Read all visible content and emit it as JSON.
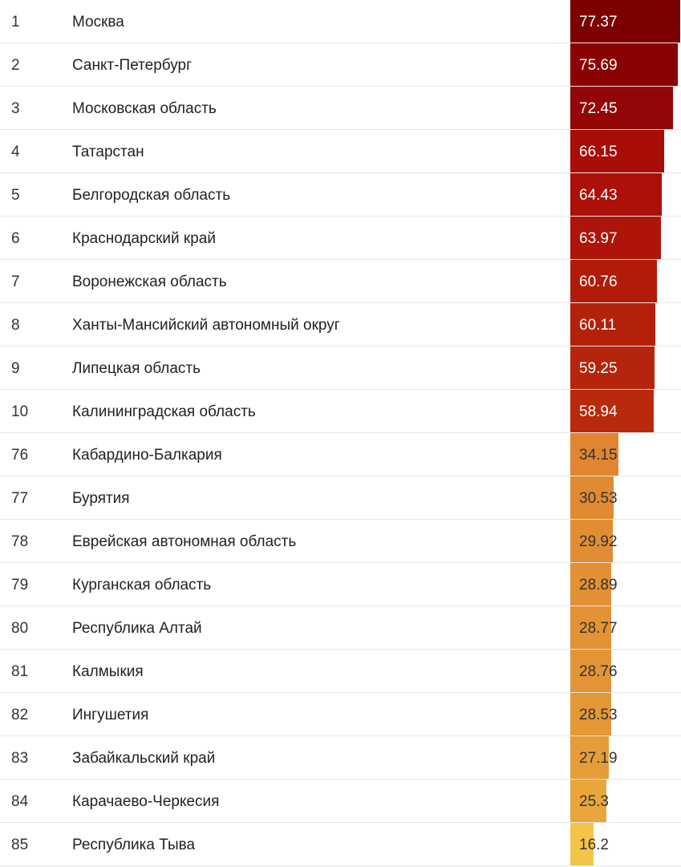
{
  "chart_data": {
    "type": "bar",
    "orientation": "horizontal",
    "columns": [
      "rank",
      "region",
      "value"
    ],
    "rows": [
      {
        "rank": "1",
        "region": "Москва",
        "value": 77.37,
        "label": "77.37",
        "color": "#7d0000"
      },
      {
        "rank": "2",
        "region": "Санкт-Петербург",
        "value": 75.69,
        "label": "75.69",
        "color": "#8a0303"
      },
      {
        "rank": "3",
        "region": "Московская область",
        "value": 72.45,
        "label": "72.45",
        "color": "#940606"
      },
      {
        "rank": "4",
        "region": "Татарстан",
        "value": 66.15,
        "label": "66.15",
        "color": "#a80d08"
      },
      {
        "rank": "5",
        "region": "Белгородская область",
        "value": 64.43,
        "label": "64.43",
        "color": "#ab1108"
      },
      {
        "rank": "6",
        "region": "Краснодарский край",
        "value": 63.97,
        "label": "63.97",
        "color": "#ae1409"
      },
      {
        "rank": "7",
        "region": "Воронежская область",
        "value": 60.76,
        "label": "60.76",
        "color": "#b11c0a"
      },
      {
        "rank": "8",
        "region": "Ханты-Мансийский автономный округ",
        "value": 60.11,
        "label": "60.11",
        "color": "#b3210b"
      },
      {
        "rank": "9",
        "region": "Липецкая область",
        "value": 59.25,
        "label": "59.25",
        "color": "#b6250b"
      },
      {
        "rank": "10",
        "region": "Калининградская область",
        "value": 58.94,
        "label": "58.94",
        "color": "#b9290c"
      },
      {
        "rank": "76",
        "region": "Кабардино-Балкария",
        "value": 34.15,
        "label": "34.15",
        "color": "#e08531"
      },
      {
        "rank": "77",
        "region": "Бурятия",
        "value": 30.53,
        "label": "30.53",
        "color": "#e08a31"
      },
      {
        "rank": "78",
        "region": "Еврейская автономная область",
        "value": 29.92,
        "label": "29.92",
        "color": "#e18d33"
      },
      {
        "rank": "79",
        "region": "Курганская область",
        "value": 28.89,
        "label": "28.89",
        "color": "#e29034"
      },
      {
        "rank": "80",
        "region": "Республика Алтай",
        "value": 28.77,
        "label": "28.77",
        "color": "#e39235"
      },
      {
        "rank": "81",
        "region": "Калмыкия",
        "value": 28.76,
        "label": "28.76",
        "color": "#e39436"
      },
      {
        "rank": "82",
        "region": "Ингушетия",
        "value": 28.53,
        "label": "28.53",
        "color": "#e49737"
      },
      {
        "rank": "83",
        "region": "Забайкальский край",
        "value": 27.19,
        "label": "27.19",
        "color": "#e69c38"
      },
      {
        "rank": "84",
        "region": "Карачаево-Черкесия",
        "value": 25.3,
        "label": "25.3",
        "color": "#e9a73b"
      },
      {
        "rank": "85",
        "region": "Республика Тыва",
        "value": 16.2,
        "label": "16.2",
        "color": "#f4c44a"
      }
    ]
  }
}
